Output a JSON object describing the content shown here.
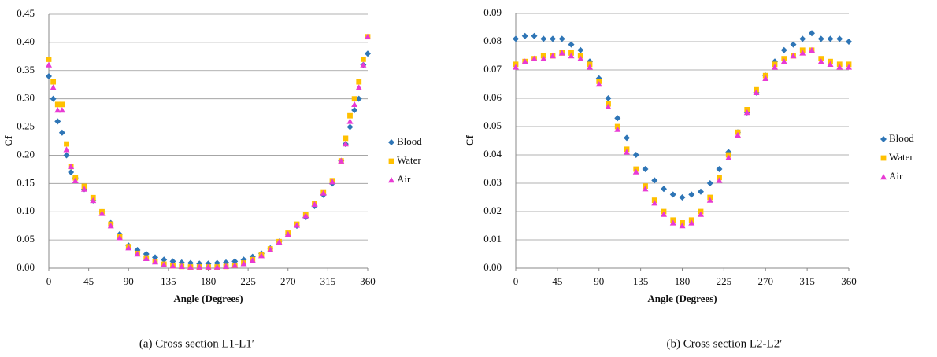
{
  "chart_data": [
    {
      "type": "scatter",
      "caption": "(a) Cross section L1-L1′",
      "xlabel": "Angle (Degrees)",
      "ylabel": "Cf",
      "x": [
        0,
        5,
        10,
        15,
        20,
        25,
        30,
        40,
        50,
        60,
        70,
        80,
        90,
        100,
        110,
        120,
        130,
        140,
        150,
        160,
        170,
        180,
        190,
        200,
        210,
        220,
        230,
        240,
        250,
        260,
        270,
        280,
        290,
        300,
        310,
        320,
        330,
        335,
        340,
        345,
        350,
        355,
        360
      ],
      "xlim": [
        0,
        360
      ],
      "xticks": [
        0,
        45,
        90,
        135,
        180,
        225,
        270,
        315,
        360
      ],
      "ylim": [
        0,
        0.45
      ],
      "yticks": [
        {
          "value": 0,
          "label": "0.00"
        },
        0.05,
        {
          "value": 0.1,
          "label": "0.10"
        },
        0.15,
        {
          "value": 0.2,
          "label": "0.20"
        },
        0.25,
        {
          "value": 0.3,
          "label": "0.30"
        },
        0.35,
        {
          "value": 0.4,
          "label": "0.40"
        },
        0.45
      ],
      "grid": true,
      "legend": "right",
      "series": [
        {
          "name": "Blood",
          "color": "#2e75b6",
          "marker": "diamond",
          "values": [
            0.34,
            0.3,
            0.26,
            0.24,
            0.2,
            0.17,
            0.16,
            0.14,
            0.12,
            0.1,
            0.08,
            0.06,
            0.04,
            0.032,
            0.025,
            0.019,
            0.015,
            0.012,
            0.01,
            0.009,
            0.008,
            0.008,
            0.009,
            0.01,
            0.012,
            0.015,
            0.02,
            0.026,
            0.035,
            0.047,
            0.06,
            0.075,
            0.09,
            0.11,
            0.13,
            0.15,
            0.19,
            0.22,
            0.25,
            0.28,
            0.3,
            0.36,
            0.38
          ]
        },
        {
          "name": "Water",
          "color": "#ffc000",
          "marker": "square",
          "values": [
            0.37,
            0.33,
            0.29,
            0.29,
            0.22,
            0.18,
            0.16,
            0.145,
            0.125,
            0.1,
            0.078,
            0.056,
            0.038,
            0.026,
            0.018,
            0.012,
            0.007,
            0.004,
            0.003,
            0.002,
            0.002,
            0.002,
            0.002,
            0.003,
            0.005,
            0.009,
            0.015,
            0.023,
            0.034,
            0.047,
            0.062,
            0.078,
            0.095,
            0.115,
            0.135,
            0.155,
            0.19,
            0.23,
            0.27,
            0.3,
            0.33,
            0.37,
            0.41
          ]
        },
        {
          "name": "Air",
          "color": "#e83ad4",
          "marker": "triangle",
          "values": [
            0.36,
            0.32,
            0.28,
            0.28,
            0.21,
            0.18,
            0.155,
            0.14,
            0.12,
            0.097,
            0.075,
            0.054,
            0.036,
            0.025,
            0.017,
            0.011,
            0.006,
            0.004,
            0.003,
            0.002,
            0.002,
            0.002,
            0.002,
            0.003,
            0.005,
            0.008,
            0.014,
            0.022,
            0.033,
            0.046,
            0.06,
            0.076,
            0.093,
            0.113,
            0.133,
            0.153,
            0.19,
            0.22,
            0.26,
            0.29,
            0.32,
            0.36,
            0.41
          ]
        }
      ]
    },
    {
      "type": "scatter",
      "caption": "(b) Cross section L2-L2′",
      "xlabel": "Angle (Degrees)",
      "ylabel": "Cf",
      "x": [
        0,
        10,
        20,
        30,
        40,
        50,
        60,
        70,
        80,
        90,
        100,
        110,
        120,
        130,
        140,
        150,
        160,
        170,
        180,
        190,
        200,
        210,
        220,
        230,
        240,
        250,
        260,
        270,
        280,
        290,
        300,
        310,
        320,
        330,
        340,
        350,
        360
      ],
      "xlim": [
        0,
        360
      ],
      "xticks": [
        0,
        45,
        90,
        135,
        180,
        225,
        270,
        315,
        360
      ],
      "ylim": [
        0,
        0.09
      ],
      "yticks": [
        {
          "value": 0,
          "label": "0.00"
        },
        0.01,
        0.02,
        0.03,
        0.04,
        0.05,
        0.06,
        0.07,
        0.08,
        0.09
      ],
      "grid": true,
      "legend": "right",
      "series": [
        {
          "name": "Blood",
          "color": "#2e75b6",
          "marker": "diamond",
          "values": [
            0.081,
            0.082,
            0.082,
            0.081,
            0.081,
            0.081,
            0.079,
            0.077,
            0.073,
            0.067,
            0.06,
            0.053,
            0.046,
            0.04,
            0.035,
            0.031,
            0.028,
            0.026,
            0.025,
            0.026,
            0.027,
            0.03,
            0.035,
            0.041,
            0.048,
            0.055,
            0.062,
            0.068,
            0.073,
            0.077,
            0.079,
            0.081,
            0.083,
            0.081,
            0.081,
            0.081,
            0.08
          ]
        },
        {
          "name": "Water",
          "color": "#ffc000",
          "marker": "square",
          "values": [
            0.072,
            0.073,
            0.074,
            0.075,
            0.075,
            0.076,
            0.076,
            0.075,
            0.072,
            0.066,
            0.058,
            0.05,
            0.042,
            0.035,
            0.029,
            0.024,
            0.02,
            0.017,
            0.016,
            0.017,
            0.02,
            0.025,
            0.032,
            0.04,
            0.048,
            0.056,
            0.063,
            0.068,
            0.072,
            0.074,
            0.075,
            0.077,
            0.077,
            0.074,
            0.073,
            0.072,
            0.072
          ]
        },
        {
          "name": "Air",
          "color": "#e83ad4",
          "marker": "triangle",
          "values": [
            0.071,
            0.073,
            0.074,
            0.074,
            0.075,
            0.076,
            0.075,
            0.074,
            0.071,
            0.065,
            0.057,
            0.049,
            0.041,
            0.034,
            0.028,
            0.023,
            0.019,
            0.016,
            0.015,
            0.016,
            0.019,
            0.024,
            0.031,
            0.039,
            0.047,
            0.055,
            0.062,
            0.067,
            0.071,
            0.073,
            0.075,
            0.076,
            0.077,
            0.073,
            0.072,
            0.071,
            0.071
          ]
        }
      ]
    }
  ]
}
